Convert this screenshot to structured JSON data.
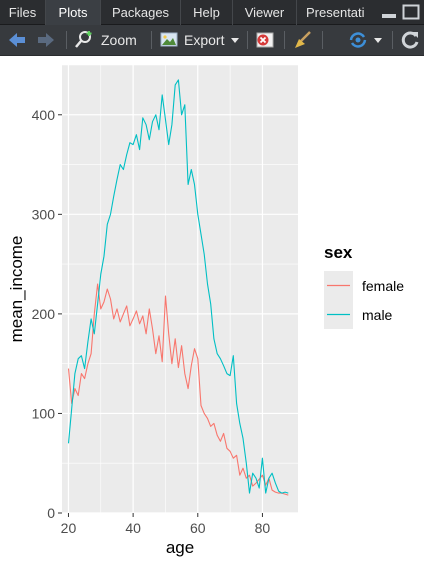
{
  "tabs": [
    {
      "label": "Files",
      "active": false
    },
    {
      "label": "Plots",
      "active": true
    },
    {
      "label": "Packages",
      "active": false
    },
    {
      "label": "Help",
      "active": false
    },
    {
      "label": "Viewer",
      "active": false
    },
    {
      "label": "Presentati",
      "active": false
    }
  ],
  "toolbar": {
    "zoom_label": "Zoom",
    "export_label": "Export",
    "icons": [
      "back-arrow-icon",
      "forward-arrow-icon",
      "zoom-icon",
      "export-icon",
      "remove-plot-icon",
      "broom-icon",
      "publish-icon",
      "refresh-icon"
    ]
  },
  "colors": {
    "tab_bg": "#2b2d30",
    "toolbar_bg": "#373a3e",
    "panel_bg": "#ebebeb",
    "grid": "#ffffff",
    "female": "#f8766d",
    "male": "#00bfc4"
  },
  "chart_data": {
    "type": "line",
    "xlabel": "age",
    "ylabel": "mean_income",
    "title": "",
    "xlim": [
      18,
      91
    ],
    "ylim": [
      0,
      450
    ],
    "x_ticks": [
      20,
      40,
      60,
      80
    ],
    "y_ticks": [
      0,
      100,
      200,
      300,
      400
    ],
    "grid": true,
    "legend": {
      "title": "sex",
      "position": "right",
      "entries": [
        "female",
        "male"
      ]
    },
    "series": [
      {
        "name": "female",
        "points": [
          [
            20,
            145
          ],
          [
            21,
            110
          ],
          [
            22,
            125
          ],
          [
            23,
            118
          ],
          [
            24,
            140
          ],
          [
            25,
            135
          ],
          [
            26,
            150
          ],
          [
            27,
            160
          ],
          [
            28,
            200
          ],
          [
            29,
            230
          ],
          [
            30,
            205
          ],
          [
            31,
            212
          ],
          [
            32,
            225
          ],
          [
            33,
            215
          ],
          [
            34,
            195
          ],
          [
            35,
            205
          ],
          [
            36,
            192
          ],
          [
            37,
            200
          ],
          [
            38,
            208
          ],
          [
            39,
            188
          ],
          [
            40,
            195
          ],
          [
            41,
            203
          ],
          [
            42,
            190
          ],
          [
            43,
            198
          ],
          [
            44,
            180
          ],
          [
            45,
            205
          ],
          [
            46,
            185
          ],
          [
            47,
            160
          ],
          [
            48,
            178
          ],
          [
            49,
            152
          ],
          [
            50,
            218
          ],
          [
            51,
            180
          ],
          [
            52,
            150
          ],
          [
            53,
            175
          ],
          [
            54,
            146
          ],
          [
            55,
            168
          ],
          [
            56,
            140
          ],
          [
            57,
            125
          ],
          [
            58,
            148
          ],
          [
            59,
            165
          ],
          [
            60,
            155
          ],
          [
            61,
            108
          ],
          [
            62,
            100
          ],
          [
            63,
            95
          ],
          [
            64,
            87
          ],
          [
            65,
            90
          ],
          [
            66,
            78
          ],
          [
            67,
            72
          ],
          [
            68,
            80
          ],
          [
            69,
            65
          ],
          [
            70,
            62
          ],
          [
            71,
            55
          ],
          [
            72,
            58
          ],
          [
            73,
            38
          ],
          [
            74,
            45
          ],
          [
            75,
            35
          ],
          [
            76,
            38
          ],
          [
            77,
            27
          ],
          [
            78,
            30
          ],
          [
            79,
            34
          ],
          [
            80,
            38
          ],
          [
            81,
            28
          ],
          [
            82,
            35
          ],
          [
            83,
            23
          ],
          [
            84,
            21
          ],
          [
            85,
            20
          ],
          [
            86,
            20
          ],
          [
            87,
            19
          ],
          [
            88,
            18
          ]
        ]
      },
      {
        "name": "male",
        "points": [
          [
            20,
            70
          ],
          [
            21,
            105
          ],
          [
            22,
            140
          ],
          [
            23,
            155
          ],
          [
            24,
            158
          ],
          [
            25,
            145
          ],
          [
            26,
            172
          ],
          [
            27,
            195
          ],
          [
            28,
            180
          ],
          [
            29,
            210
          ],
          [
            30,
            240
          ],
          [
            31,
            258
          ],
          [
            32,
            290
          ],
          [
            33,
            300
          ],
          [
            34,
            318
          ],
          [
            35,
            335
          ],
          [
            36,
            350
          ],
          [
            37,
            345
          ],
          [
            38,
            360
          ],
          [
            39,
            372
          ],
          [
            40,
            370
          ],
          [
            41,
            380
          ],
          [
            42,
            365
          ],
          [
            43,
            397
          ],
          [
            44,
            390
          ],
          [
            45,
            375
          ],
          [
            46,
            393
          ],
          [
            47,
            400
          ],
          [
            48,
            385
          ],
          [
            49,
            420
          ],
          [
            50,
            395
          ],
          [
            51,
            370
          ],
          [
            52,
            390
          ],
          [
            53,
            430
          ],
          [
            54,
            435
          ],
          [
            55,
            400
          ],
          [
            56,
            410
          ],
          [
            57,
            330
          ],
          [
            58,
            345
          ],
          [
            59,
            330
          ],
          [
            60,
            300
          ],
          [
            61,
            280
          ],
          [
            62,
            260
          ],
          [
            63,
            230
          ],
          [
            64,
            210
          ],
          [
            65,
            175
          ],
          [
            66,
            160
          ],
          [
            67,
            155
          ],
          [
            68,
            148
          ],
          [
            69,
            140
          ],
          [
            70,
            138
          ],
          [
            71,
            158
          ],
          [
            72,
            110
          ],
          [
            73,
            90
          ],
          [
            74,
            75
          ],
          [
            75,
            50
          ],
          [
            76,
            20
          ],
          [
            77,
            40
          ],
          [
            78,
            35
          ],
          [
            79,
            25
          ],
          [
            80,
            55
          ],
          [
            81,
            20
          ],
          [
            82,
            35
          ],
          [
            83,
            40
          ],
          [
            84,
            30
          ],
          [
            85,
            22
          ],
          [
            86,
            20
          ],
          [
            87,
            21
          ],
          [
            88,
            20
          ]
        ]
      }
    ]
  }
}
